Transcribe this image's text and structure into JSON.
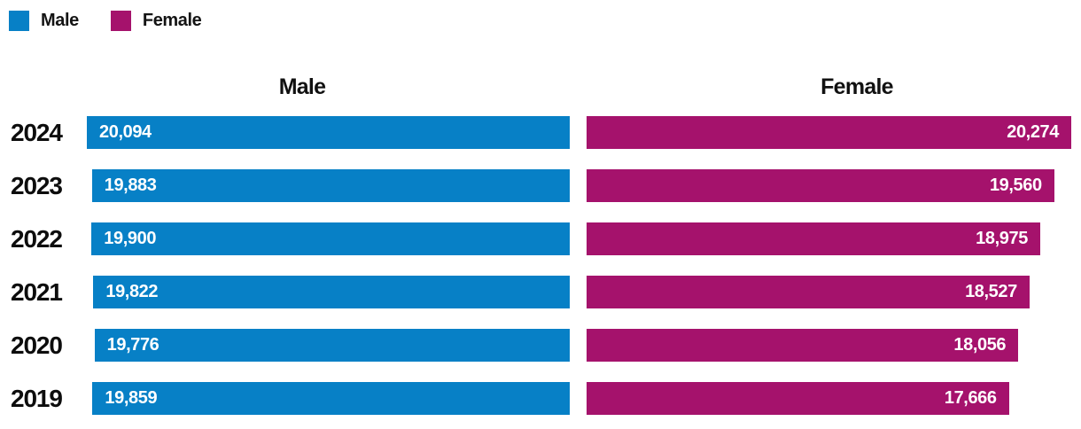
{
  "legend": {
    "items": [
      {
        "label": "Male",
        "color": "#0780C6"
      },
      {
        "label": "Female",
        "color": "#A5126C"
      }
    ]
  },
  "headers": {
    "male": "Male",
    "female": "Female"
  },
  "chart_data": {
    "type": "bar",
    "orientation": "horizontal",
    "layout": "paired-split-bars",
    "title": "",
    "xlabel": "",
    "ylabel": "",
    "grid": false,
    "legend_position": "top-left",
    "categories": [
      "2024",
      "2023",
      "2022",
      "2021",
      "2020",
      "2019"
    ],
    "series": [
      {
        "name": "Male",
        "color": "#0780C6",
        "anchor": "right",
        "values": [
          20094,
          19883,
          19900,
          19822,
          19776,
          19859
        ]
      },
      {
        "name": "Female",
        "color": "#A5126C",
        "anchor": "left",
        "values": [
          20274,
          19560,
          18975,
          18527,
          18056,
          17666
        ]
      }
    ],
    "rows": [
      {
        "year": "2024",
        "male": {
          "value": 20094,
          "label": "20,094"
        },
        "female": {
          "value": 20274,
          "label": "20,274"
        }
      },
      {
        "year": "2023",
        "male": {
          "value": 19883,
          "label": "19,883"
        },
        "female": {
          "value": 19560,
          "label": "19,560"
        }
      },
      {
        "year": "2022",
        "male": {
          "value": 19900,
          "label": "19,900"
        },
        "female": {
          "value": 18975,
          "label": "18,975"
        }
      },
      {
        "year": "2021",
        "male": {
          "value": 19822,
          "label": "19,822"
        },
        "female": {
          "value": 18527,
          "label": "18,527"
        }
      },
      {
        "year": "2020",
        "male": {
          "value": 19776,
          "label": "19,776"
        },
        "female": {
          "value": 18056,
          "label": "18,056"
        }
      },
      {
        "year": "2019",
        "male": {
          "value": 19859,
          "label": "19,859"
        },
        "female": {
          "value": 17666,
          "label": "17,666"
        }
      }
    ]
  }
}
